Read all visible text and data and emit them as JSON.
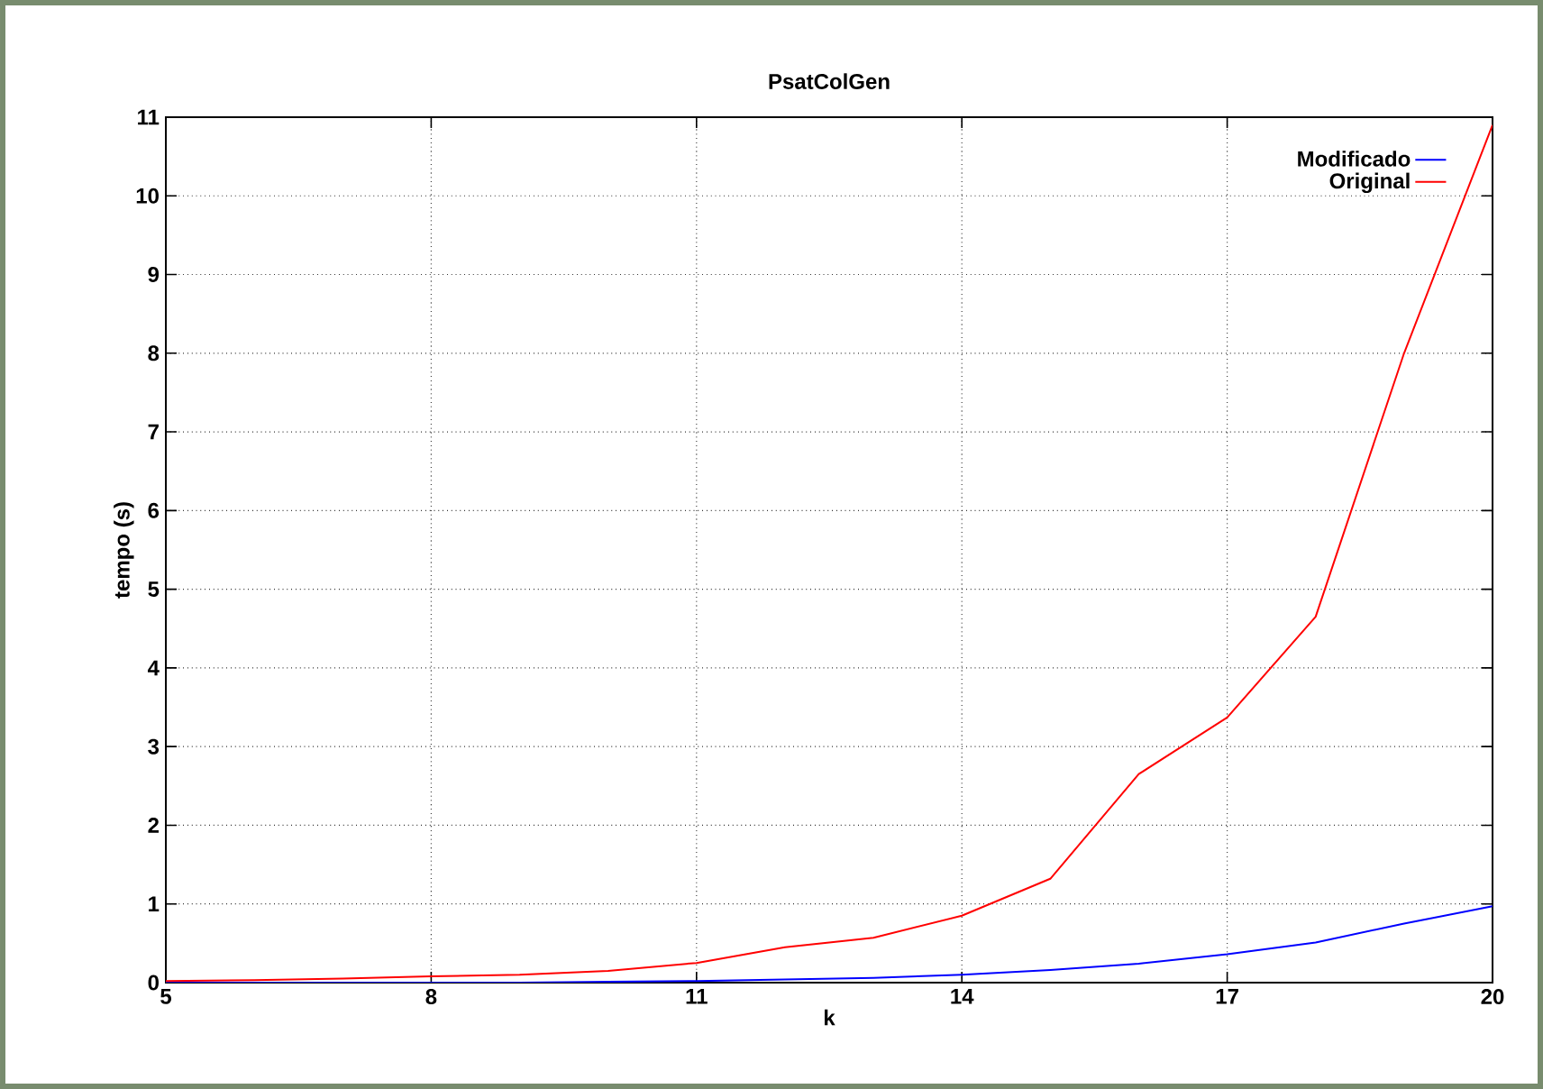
{
  "chart_data": {
    "type": "line",
    "title": "PsatColGen",
    "xlabel": "k",
    "ylabel": "tempo (s)",
    "x": [
      5,
      6,
      7,
      8,
      9,
      10,
      11,
      12,
      13,
      14,
      15,
      16,
      17,
      18,
      19,
      20
    ],
    "series": [
      {
        "name": "Modificado",
        "color": "#0000ff",
        "values": [
          0,
          0,
          0,
          0,
          0,
          0.01,
          0.02,
          0.04,
          0.06,
          0.1,
          0.16,
          0.24,
          0.36,
          0.51,
          0.75,
          0.97
        ]
      },
      {
        "name": "Original",
        "color": "#ff0000",
        "values": [
          0.02,
          0.03,
          0.05,
          0.08,
          0.1,
          0.15,
          0.25,
          0.45,
          0.57,
          0.85,
          1.32,
          2.65,
          3.37,
          4.65,
          8.0,
          10.9
        ]
      }
    ],
    "xlim": [
      5,
      20
    ],
    "xticks": [
      5,
      8,
      11,
      14,
      17,
      20
    ],
    "ylim": [
      0,
      11
    ],
    "yticks": [
      0,
      1,
      2,
      3,
      4,
      5,
      6,
      7,
      8,
      9,
      10,
      11
    ],
    "grid": true,
    "legend": "top right",
    "marker": "none",
    "line_style": "solid"
  }
}
